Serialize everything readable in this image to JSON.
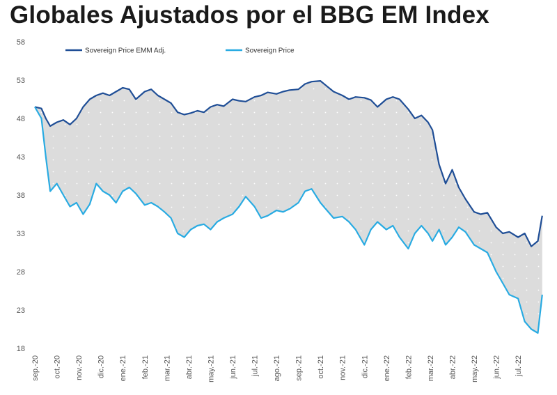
{
  "chart_data": {
    "type": "line",
    "title": "Globales Ajustados por el BBG EM Index",
    "xlabel": "",
    "ylabel": "",
    "ylim": [
      18,
      58
    ],
    "yticks": [
      18,
      23,
      28,
      33,
      38,
      43,
      48,
      53,
      58
    ],
    "x_tick_labels": [
      "sep.-20",
      "oct.-20",
      "nov.-20",
      "dic.-20",
      "ene.-21",
      "feb.-21",
      "mar.-21",
      "abr.-21",
      "may.-21",
      "jun.-21",
      "jul.-21",
      "ago.-21",
      "sep.-21",
      "oct.-21",
      "nov.-21",
      "dic.-21",
      "ene.-22",
      "feb.-22",
      "mar.-22",
      "abr.-22",
      "may.-22",
      "jun.-22",
      "jul.-22"
    ],
    "x_range": [
      0,
      23.2
    ],
    "legend_position": "top",
    "grid": false,
    "fill_between": true,
    "colors": {
      "adjusted": "#1f4e96",
      "price": "#29abe2",
      "fill": "#dcdcdc"
    },
    "series": [
      {
        "name": "Sovereign Price EMM Adj.",
        "x": [
          0,
          0.3,
          0.5,
          0.7,
          1.0,
          1.3,
          1.6,
          1.9,
          2.2,
          2.5,
          2.8,
          3.1,
          3.4,
          3.7,
          4.0,
          4.3,
          4.6,
          5.0,
          5.3,
          5.6,
          5.9,
          6.2,
          6.5,
          6.8,
          7.1,
          7.4,
          7.7,
          8.0,
          8.3,
          8.6,
          9.0,
          9.3,
          9.6,
          10.0,
          10.3,
          10.6,
          11.0,
          11.3,
          11.6,
          12.0,
          12.3,
          12.6,
          13.0,
          13.3,
          13.6,
          14.0,
          14.3,
          14.6,
          15.0,
          15.3,
          15.6,
          16.0,
          16.3,
          16.6,
          17.0,
          17.3,
          17.6,
          17.9,
          18.1,
          18.4,
          18.7,
          19.0,
          19.3,
          19.6,
          20.0,
          20.3,
          20.6,
          21.0,
          21.3,
          21.6,
          22.0,
          22.3,
          22.6,
          22.9,
          23.1
        ],
        "y": [
          49.5,
          49.3,
          48.0,
          47.0,
          47.5,
          47.8,
          47.2,
          48.0,
          49.5,
          50.5,
          51.0,
          51.3,
          51.0,
          51.5,
          52.0,
          51.8,
          50.5,
          51.5,
          51.8,
          51.0,
          50.5,
          50.0,
          48.8,
          48.5,
          48.7,
          49.0,
          48.8,
          49.5,
          49.8,
          49.6,
          50.5,
          50.3,
          50.2,
          50.8,
          51.0,
          51.4,
          51.2,
          51.5,
          51.7,
          51.8,
          52.5,
          52.8,
          52.9,
          52.2,
          51.5,
          51.0,
          50.5,
          50.8,
          50.7,
          50.4,
          49.5,
          50.5,
          50.8,
          50.5,
          49.2,
          48.0,
          48.4,
          47.5,
          46.5,
          42.0,
          39.5,
          41.3,
          39.0,
          37.5,
          35.8,
          35.5,
          35.7,
          33.8,
          33.0,
          33.2,
          32.5,
          33.0,
          31.3,
          32.0,
          35.3
        ]
      },
      {
        "name": "Sovereign Price",
        "x": [
          0,
          0.3,
          0.5,
          0.7,
          1.0,
          1.3,
          1.6,
          1.9,
          2.2,
          2.5,
          2.8,
          3.1,
          3.4,
          3.7,
          4.0,
          4.3,
          4.6,
          5.0,
          5.3,
          5.6,
          5.9,
          6.2,
          6.5,
          6.8,
          7.1,
          7.4,
          7.7,
          8.0,
          8.3,
          8.6,
          9.0,
          9.3,
          9.6,
          10.0,
          10.3,
          10.6,
          11.0,
          11.3,
          11.6,
          12.0,
          12.3,
          12.6,
          13.0,
          13.3,
          13.6,
          14.0,
          14.3,
          14.6,
          15.0,
          15.3,
          15.6,
          16.0,
          16.3,
          16.6,
          17.0,
          17.3,
          17.6,
          17.9,
          18.1,
          18.4,
          18.7,
          19.0,
          19.3,
          19.6,
          20.0,
          20.3,
          20.6,
          21.0,
          21.3,
          21.6,
          22.0,
          22.3,
          22.6,
          22.9,
          23.1
        ],
        "y": [
          49.5,
          48.0,
          43.0,
          38.5,
          39.5,
          38.0,
          36.5,
          37.0,
          35.5,
          36.8,
          39.5,
          38.5,
          38.0,
          37.0,
          38.5,
          39.0,
          38.2,
          36.7,
          37.0,
          36.5,
          35.8,
          35.0,
          33.0,
          32.5,
          33.5,
          34.0,
          34.2,
          33.5,
          34.5,
          35.0,
          35.5,
          36.5,
          37.8,
          36.5,
          35.0,
          35.3,
          36.0,
          35.8,
          36.2,
          37.0,
          38.5,
          38.8,
          37.0,
          36.0,
          35.0,
          35.2,
          34.5,
          33.5,
          31.5,
          33.5,
          34.5,
          33.5,
          34.0,
          32.5,
          31.0,
          33.0,
          34.0,
          33.0,
          32.0,
          33.5,
          31.5,
          32.5,
          33.8,
          33.2,
          31.5,
          31.0,
          30.5,
          28.0,
          26.5,
          25.0,
          24.5,
          21.5,
          20.5,
          20.0,
          25.0
        ]
      }
    ]
  }
}
